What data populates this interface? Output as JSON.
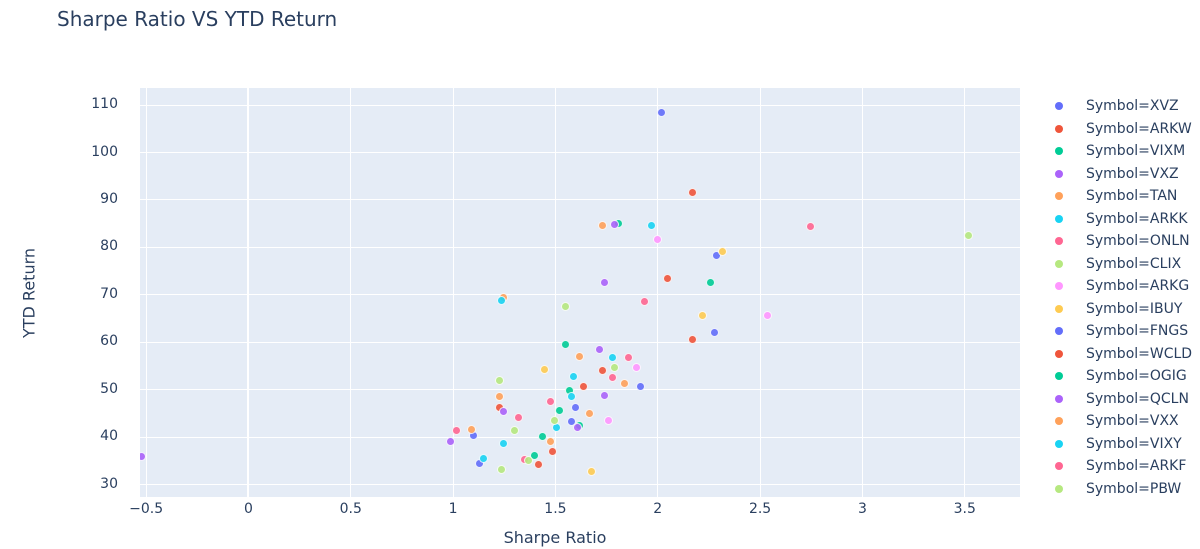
{
  "chart_data": {
    "type": "scatter",
    "title": "Sharpe Ratio VS YTD Return",
    "xlabel": "Sharpe Ratio",
    "ylabel": "YTD Return",
    "xlim": [
      -0.53,
      3.77
    ],
    "ylim": [
      27.4,
      113.6
    ],
    "x_ticks": [
      -0.5,
      0,
      0.5,
      1,
      1.5,
      2,
      2.5,
      3,
      3.5
    ],
    "x_tick_labels": [
      "−0.5",
      "0",
      "0.5",
      "1",
      "1.5",
      "2",
      "2.5",
      "3",
      "3.5"
    ],
    "y_ticks": [
      30,
      40,
      50,
      60,
      70,
      80,
      90,
      100,
      110
    ],
    "y_tick_labels": [
      "30",
      "40",
      "50",
      "60",
      "70",
      "80",
      "90",
      "100",
      "110"
    ],
    "grid": true,
    "legend_position": "right",
    "series": [
      {
        "name": "Symbol=XVZ",
        "color": "#636efa",
        "points": [
          [
            2.02,
            108.3
          ],
          [
            2.29,
            78.1
          ],
          [
            1.1,
            40.2
          ],
          [
            1.6,
            46.2
          ]
        ]
      },
      {
        "name": "Symbol=ARKW",
        "color": "#ef553b",
        "points": [
          [
            2.17,
            91.5
          ],
          [
            2.05,
            73.3
          ],
          [
            1.64,
            50.6
          ],
          [
            1.49,
            36.9
          ]
        ]
      },
      {
        "name": "Symbol=VIXM",
        "color": "#00cc96",
        "points": [
          [
            1.81,
            84.9
          ],
          [
            2.26,
            72.6
          ],
          [
            1.55,
            59.4
          ],
          [
            1.62,
            42.4
          ]
        ]
      },
      {
        "name": "Symbol=VXZ",
        "color": "#ab63fa",
        "points": [
          [
            1.79,
            84.8
          ],
          [
            1.74,
            72.4
          ],
          [
            -0.52,
            35.8
          ],
          [
            1.72,
            58.4
          ]
        ]
      },
      {
        "name": "Symbol=TAN",
        "color": "#ffa15a",
        "points": [
          [
            1.73,
            84.6
          ],
          [
            1.25,
            69.3
          ],
          [
            1.62,
            56.9
          ],
          [
            1.48,
            38.9
          ]
        ]
      },
      {
        "name": "Symbol=ARKK",
        "color": "#19d3f3",
        "points": [
          [
            1.97,
            84.5
          ],
          [
            1.24,
            68.7
          ],
          [
            1.78,
            56.7
          ],
          [
            1.59,
            52.6
          ]
        ]
      },
      {
        "name": "Symbol=ONLN",
        "color": "#ff6692",
        "points": [
          [
            2.75,
            84.3
          ],
          [
            1.94,
            68.4
          ],
          [
            1.86,
            56.7
          ],
          [
            1.02,
            41.4
          ]
        ]
      },
      {
        "name": "Symbol=CLIX",
        "color": "#b6e880",
        "points": [
          [
            3.52,
            82.4
          ],
          [
            1.55,
            67.5
          ],
          [
            1.23,
            51.9
          ],
          [
            1.79,
            54.6
          ]
        ]
      },
      {
        "name": "Symbol=ARKG",
        "color": "#ff97ff",
        "points": [
          [
            2.0,
            81.6
          ],
          [
            2.54,
            65.6
          ],
          [
            1.9,
            54.6
          ],
          [
            1.76,
            43.4
          ]
        ]
      },
      {
        "name": "Symbol=IBUY",
        "color": "#fecb52",
        "points": [
          [
            2.32,
            79.0
          ],
          [
            2.22,
            65.5
          ],
          [
            1.45,
            54.2
          ],
          [
            1.68,
            32.6
          ]
        ]
      },
      {
        "name": "Symbol=FNGS",
        "color": "#636efa",
        "points": [
          [
            2.28,
            62.0
          ],
          [
            1.92,
            50.5
          ],
          [
            1.58,
            43.2
          ],
          [
            1.13,
            34.3
          ]
        ]
      },
      {
        "name": "Symbol=WCLD",
        "color": "#ef553b",
        "points": [
          [
            2.17,
            60.5
          ],
          [
            1.73,
            53.9
          ],
          [
            1.23,
            46.2
          ],
          [
            1.42,
            34.2
          ]
        ]
      },
      {
        "name": "Symbol=OGIG",
        "color": "#00cc96",
        "points": [
          [
            1.57,
            49.8
          ],
          [
            1.52,
            45.6
          ],
          [
            1.44,
            40.0
          ],
          [
            1.4,
            36.1
          ]
        ]
      },
      {
        "name": "Symbol=QCLN",
        "color": "#ab63fa",
        "points": [
          [
            1.74,
            48.7
          ],
          [
            1.25,
            45.4
          ],
          [
            0.99,
            39.0
          ],
          [
            1.61,
            41.9
          ]
        ]
      },
      {
        "name": "Symbol=VXX",
        "color": "#ffa15a",
        "points": [
          [
            1.84,
            51.3
          ],
          [
            1.23,
            48.5
          ],
          [
            1.09,
            41.6
          ],
          [
            1.67,
            44.9
          ]
        ]
      },
      {
        "name": "Symbol=VIXY",
        "color": "#19d3f3",
        "points": [
          [
            1.58,
            48.5
          ],
          [
            1.51,
            41.9
          ],
          [
            1.25,
            38.6
          ],
          [
            1.15,
            35.4
          ]
        ]
      },
      {
        "name": "Symbol=ARKF",
        "color": "#ff6692",
        "points": [
          [
            1.78,
            52.5
          ],
          [
            1.48,
            47.5
          ],
          [
            1.32,
            44.0
          ],
          [
            1.35,
            35.2
          ]
        ]
      },
      {
        "name": "Symbol=PBW",
        "color": "#b6e880",
        "points": [
          [
            1.5,
            43.4
          ],
          [
            1.3,
            41.4
          ],
          [
            1.37,
            34.9
          ],
          [
            1.24,
            33.0
          ]
        ]
      }
    ]
  },
  "legend": {
    "items": [
      {
        "label": "Symbol=XVZ",
        "color": "#636efa"
      },
      {
        "label": "Symbol=ARKW",
        "color": "#ef553b"
      },
      {
        "label": "Symbol=VIXM",
        "color": "#00cc96"
      },
      {
        "label": "Symbol=VXZ",
        "color": "#ab63fa"
      },
      {
        "label": "Symbol=TAN",
        "color": "#ffa15a"
      },
      {
        "label": "Symbol=ARKK",
        "color": "#19d3f3"
      },
      {
        "label": "Symbol=ONLN",
        "color": "#ff6692"
      },
      {
        "label": "Symbol=CLIX",
        "color": "#b6e880"
      },
      {
        "label": "Symbol=ARKG",
        "color": "#ff97ff"
      },
      {
        "label": "Symbol=IBUY",
        "color": "#fecb52"
      },
      {
        "label": "Symbol=FNGS",
        "color": "#636efa"
      },
      {
        "label": "Symbol=WCLD",
        "color": "#ef553b"
      },
      {
        "label": "Symbol=OGIG",
        "color": "#00cc96"
      },
      {
        "label": "Symbol=QCLN",
        "color": "#ab63fa"
      },
      {
        "label": "Symbol=VXX",
        "color": "#ffa15a"
      },
      {
        "label": "Symbol=VIXY",
        "color": "#19d3f3"
      },
      {
        "label": "Symbol=ARKF",
        "color": "#ff6692"
      },
      {
        "label": "Symbol=PBW",
        "color": "#b6e880"
      }
    ]
  }
}
